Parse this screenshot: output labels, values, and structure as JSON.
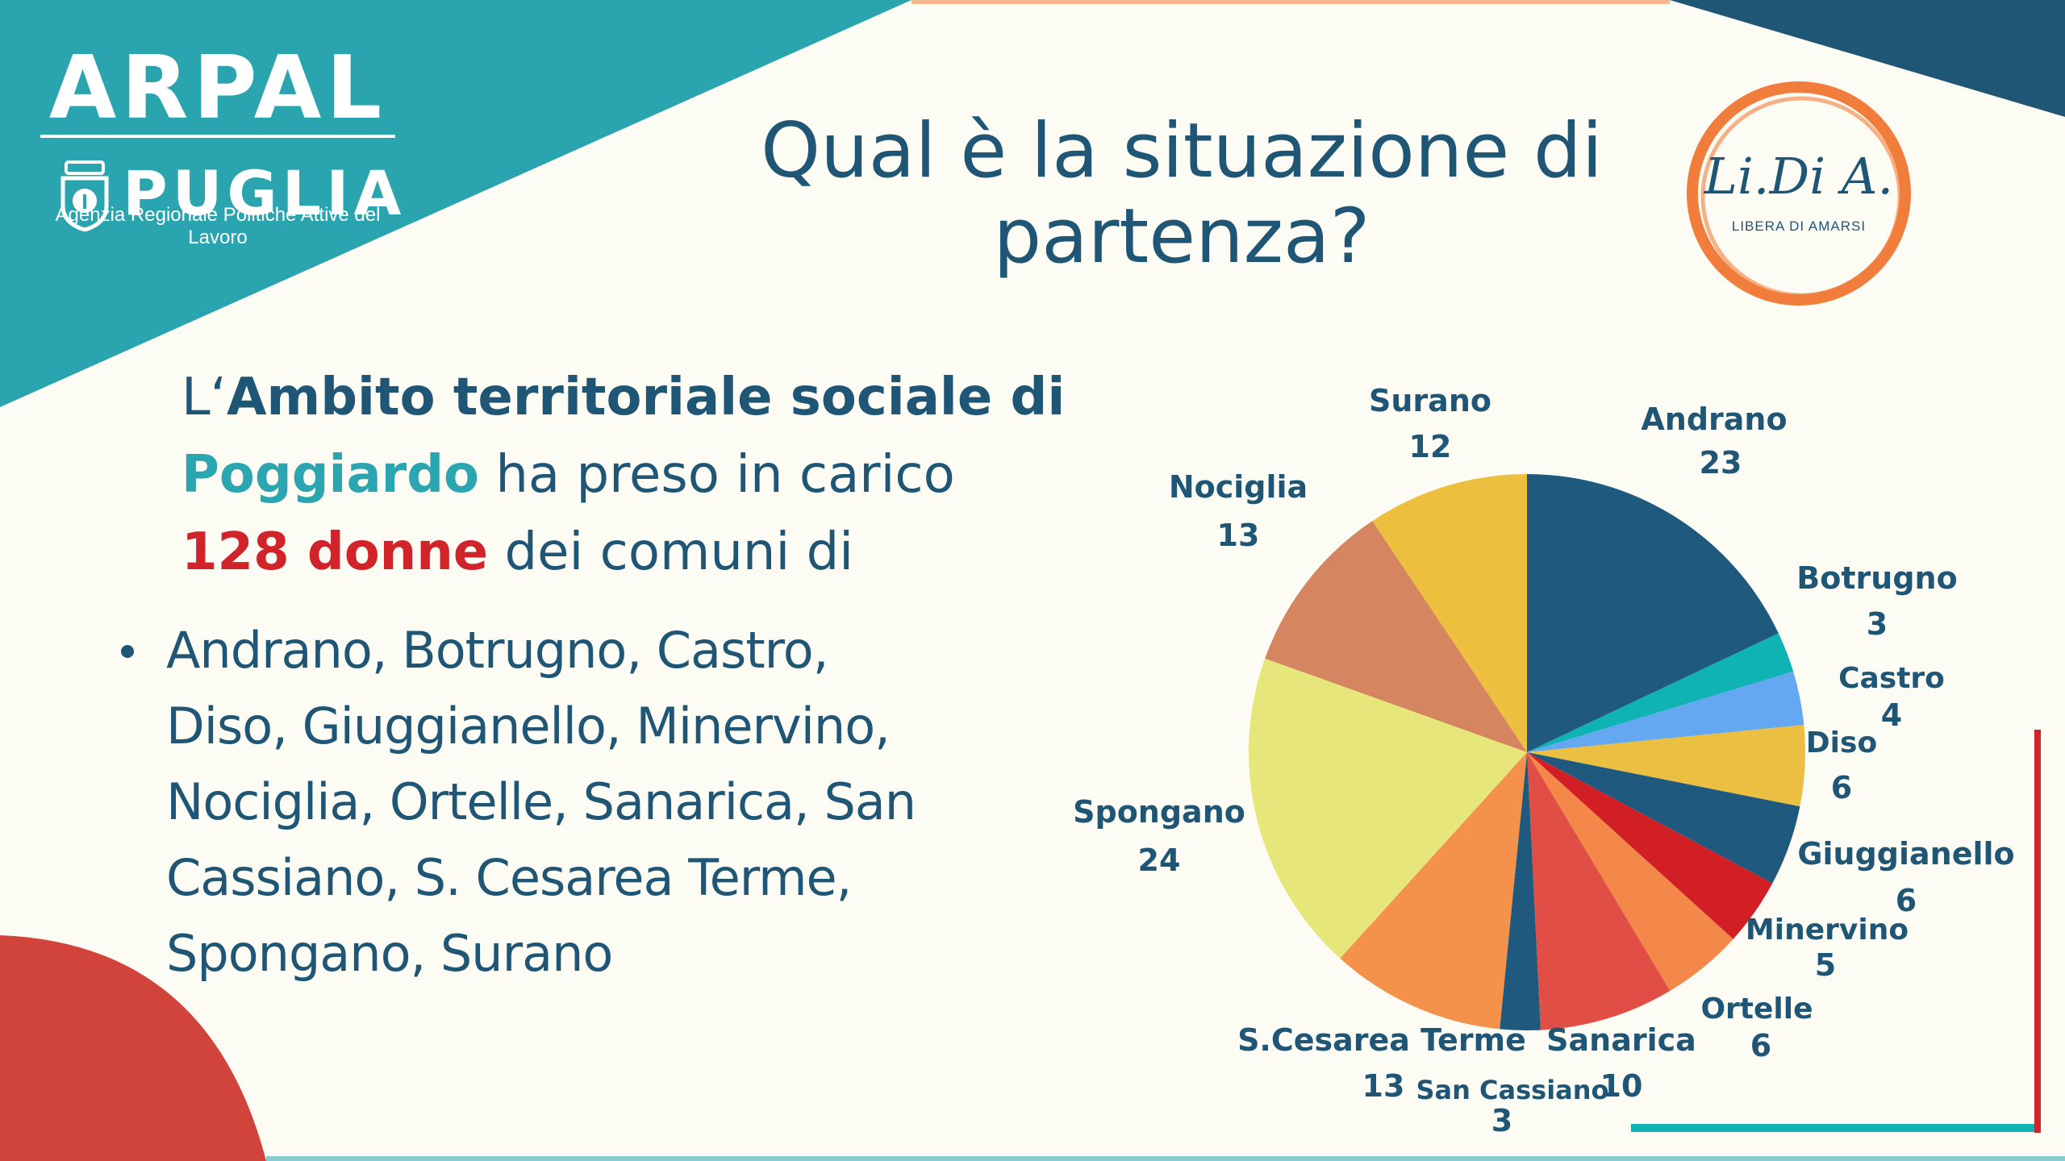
{
  "header": {
    "logo_left": {
      "name": "ARPAL",
      "region": "PUGLIA",
      "subtitle": "Agenzia Regionale Politiche Attive del Lavoro"
    },
    "title": "Qual è la situazione di partenza?",
    "logo_right": {
      "name": "Li.Di A.",
      "tagline": "LIBERA DI AMARSI"
    }
  },
  "intro": {
    "part1": "L‘",
    "part2": "Ambito territoriale sociale di",
    "part3": "Poggiardo",
    "part4": " ha preso in carico ",
    "part5": "128 ",
    "part6": "donne",
    "part7": " dei comuni di"
  },
  "bullet": {
    "text": "Andrano, Botrugno, Castro, Diso, Giuggianello, Minervino, Nociglia, Ortelle, Sanarica, San Cassiano, S. Cesarea Terme, Spongano, Surano"
  },
  "colors": {
    "navy": "#1f5575",
    "teal": "#2ba5b0",
    "red": "#d0232a",
    "background": "#fdfcf4",
    "orange_ring": "#f07d3c"
  },
  "chart_data": {
    "type": "pie",
    "title": "",
    "start_angle_deg": 0,
    "direction": "clockwise",
    "slices": [
      {
        "label": "Andrano",
        "value": 23,
        "color": "#1f5a7e"
      },
      {
        "label": "Botrugno",
        "value": 3,
        "color": "#10b3b3"
      },
      {
        "label": "Castro",
        "value": 4,
        "color": "#65a8f2"
      },
      {
        "label": "Diso",
        "value": 6,
        "color": "#ebbf41"
      },
      {
        "label": "Giuggianello",
        "value": 6,
        "color": "#1f5a7e"
      },
      {
        "label": "Minervino",
        "value": 5,
        "color": "#d21e25"
      },
      {
        "label": "Ortelle",
        "value": 6,
        "color": "#f3884a"
      },
      {
        "label": "Sanarica",
        "value": 10,
        "color": "#e04e45"
      },
      {
        "label": "San Cassiano",
        "value": 3,
        "color": "#1f5a7e"
      },
      {
        "label": "S.Cesarea Terme",
        "value": 13,
        "color": "#f4914a"
      },
      {
        "label": "Spongano",
        "value": 24,
        "color": "#e6e67a"
      },
      {
        "label": "Nociglia",
        "value": 13,
        "color": "#d5855f"
      },
      {
        "label": "Surano",
        "value": 12,
        "color": "#ecbf3f"
      }
    ]
  }
}
